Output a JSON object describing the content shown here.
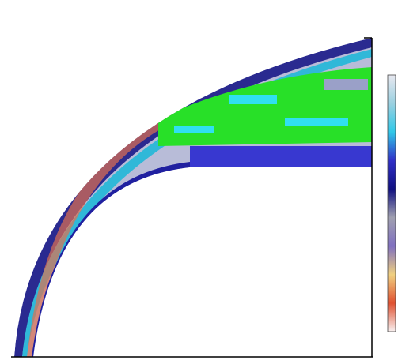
{
  "colorbar": {
    "colors": [
      "#e8e8f0",
      "#9ad0e0",
      "#30c8e8",
      "#3030c8",
      "#101080",
      "#a0a0b0",
      "#8070c0",
      "#f0d080",
      "#e05030",
      "#f8f0f0"
    ]
  }
}
